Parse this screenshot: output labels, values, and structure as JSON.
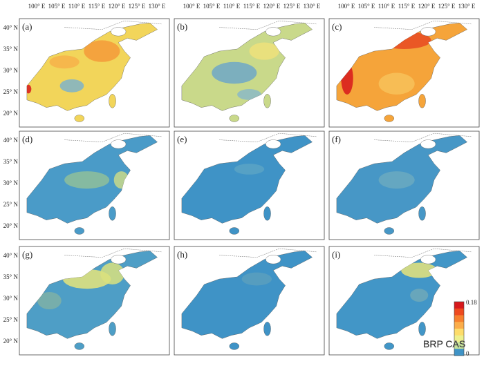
{
  "panels": [
    {
      "label": "(a)",
      "base": "#f2d55a"
    },
    {
      "label": "(b)",
      "base": "#c9d98a"
    },
    {
      "label": "(c)",
      "base": "#f5a43a"
    },
    {
      "label": "(d)",
      "base": "#4a9bc8"
    },
    {
      "label": "(e)",
      "base": "#3f93c6"
    },
    {
      "label": "(f)",
      "base": "#4797c6"
    },
    {
      "label": "(g)",
      "base": "#4e9ec6"
    },
    {
      "label": "(h)",
      "base": "#3f93c6"
    },
    {
      "label": "(i)",
      "base": "#4296c7"
    }
  ],
  "lon_labels": [
    "100° E",
    "105° E",
    "110° E",
    "115° E",
    "120° E",
    "125° E",
    "130° E"
  ],
  "lat_labels": [
    "40° N",
    "35° N",
    "30° N",
    "25° N",
    "20° N"
  ],
  "legend": {
    "max_label": "0.18",
    "min_label": "0",
    "colors": [
      "#d7191c",
      "#ee4a1f",
      "#f7802e",
      "#fbad4a",
      "#fddc6a",
      "#eef08c",
      "#c5e39a",
      "#3f93c6"
    ]
  },
  "watermark": "BRP CAS"
}
